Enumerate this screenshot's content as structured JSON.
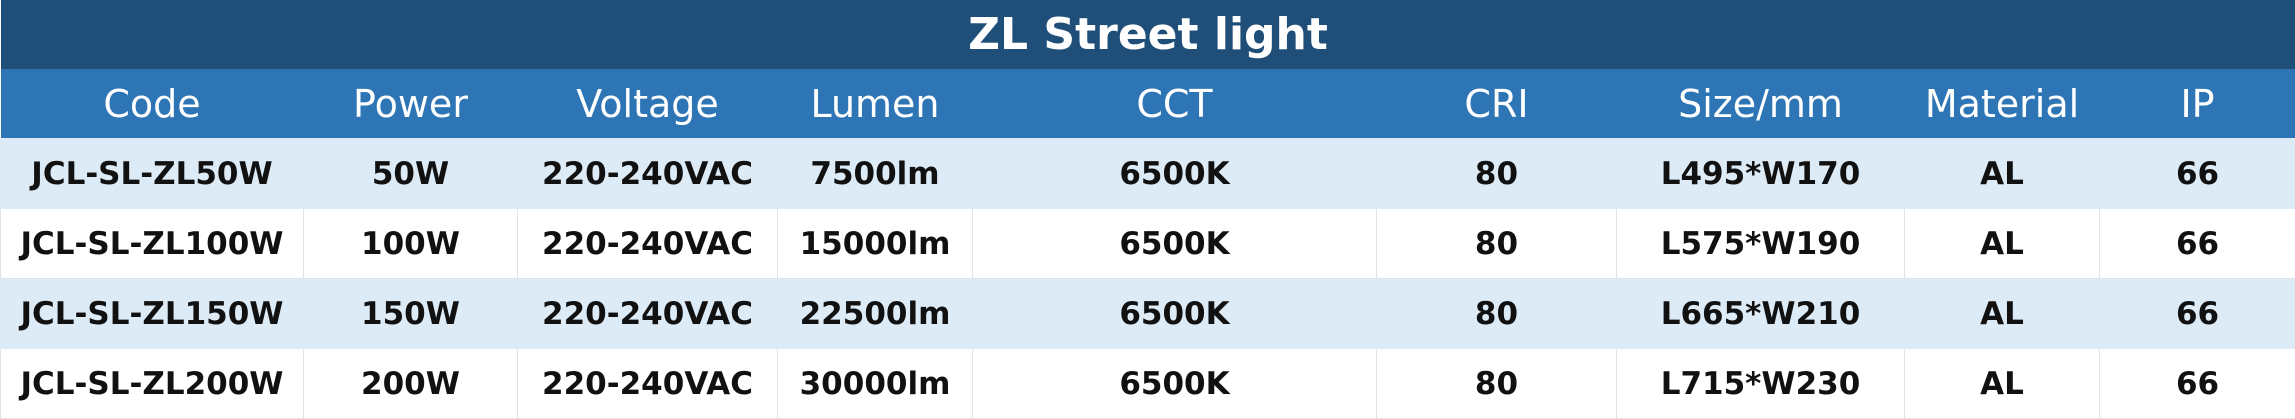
{
  "table": {
    "title": "ZL Street light",
    "columns": [
      "Code",
      "Power",
      "Voltage",
      "Lumen",
      "CCT",
      "CRI",
      "Size/mm",
      "Material",
      "IP"
    ],
    "rows": [
      [
        "JCL-SL-ZL50W",
        "50W",
        "220-240VAC",
        "7500lm",
        "6500K",
        "80",
        "L495*W170",
        "AL",
        "66"
      ],
      [
        "JCL-SL-ZL100W",
        "100W",
        "220-240VAC",
        "15000lm",
        "6500K",
        "80",
        "L575*W190",
        "AL",
        "66"
      ],
      [
        "JCL-SL-ZL150W",
        "150W",
        "220-240VAC",
        "22500lm",
        "6500K",
        "80",
        "L665*W210",
        "AL",
        "66"
      ],
      [
        "JCL-SL-ZL200W",
        "200W",
        "220-240VAC",
        "30000lm",
        "6500K",
        "80",
        "L715*W230",
        "AL",
        "66"
      ]
    ]
  }
}
